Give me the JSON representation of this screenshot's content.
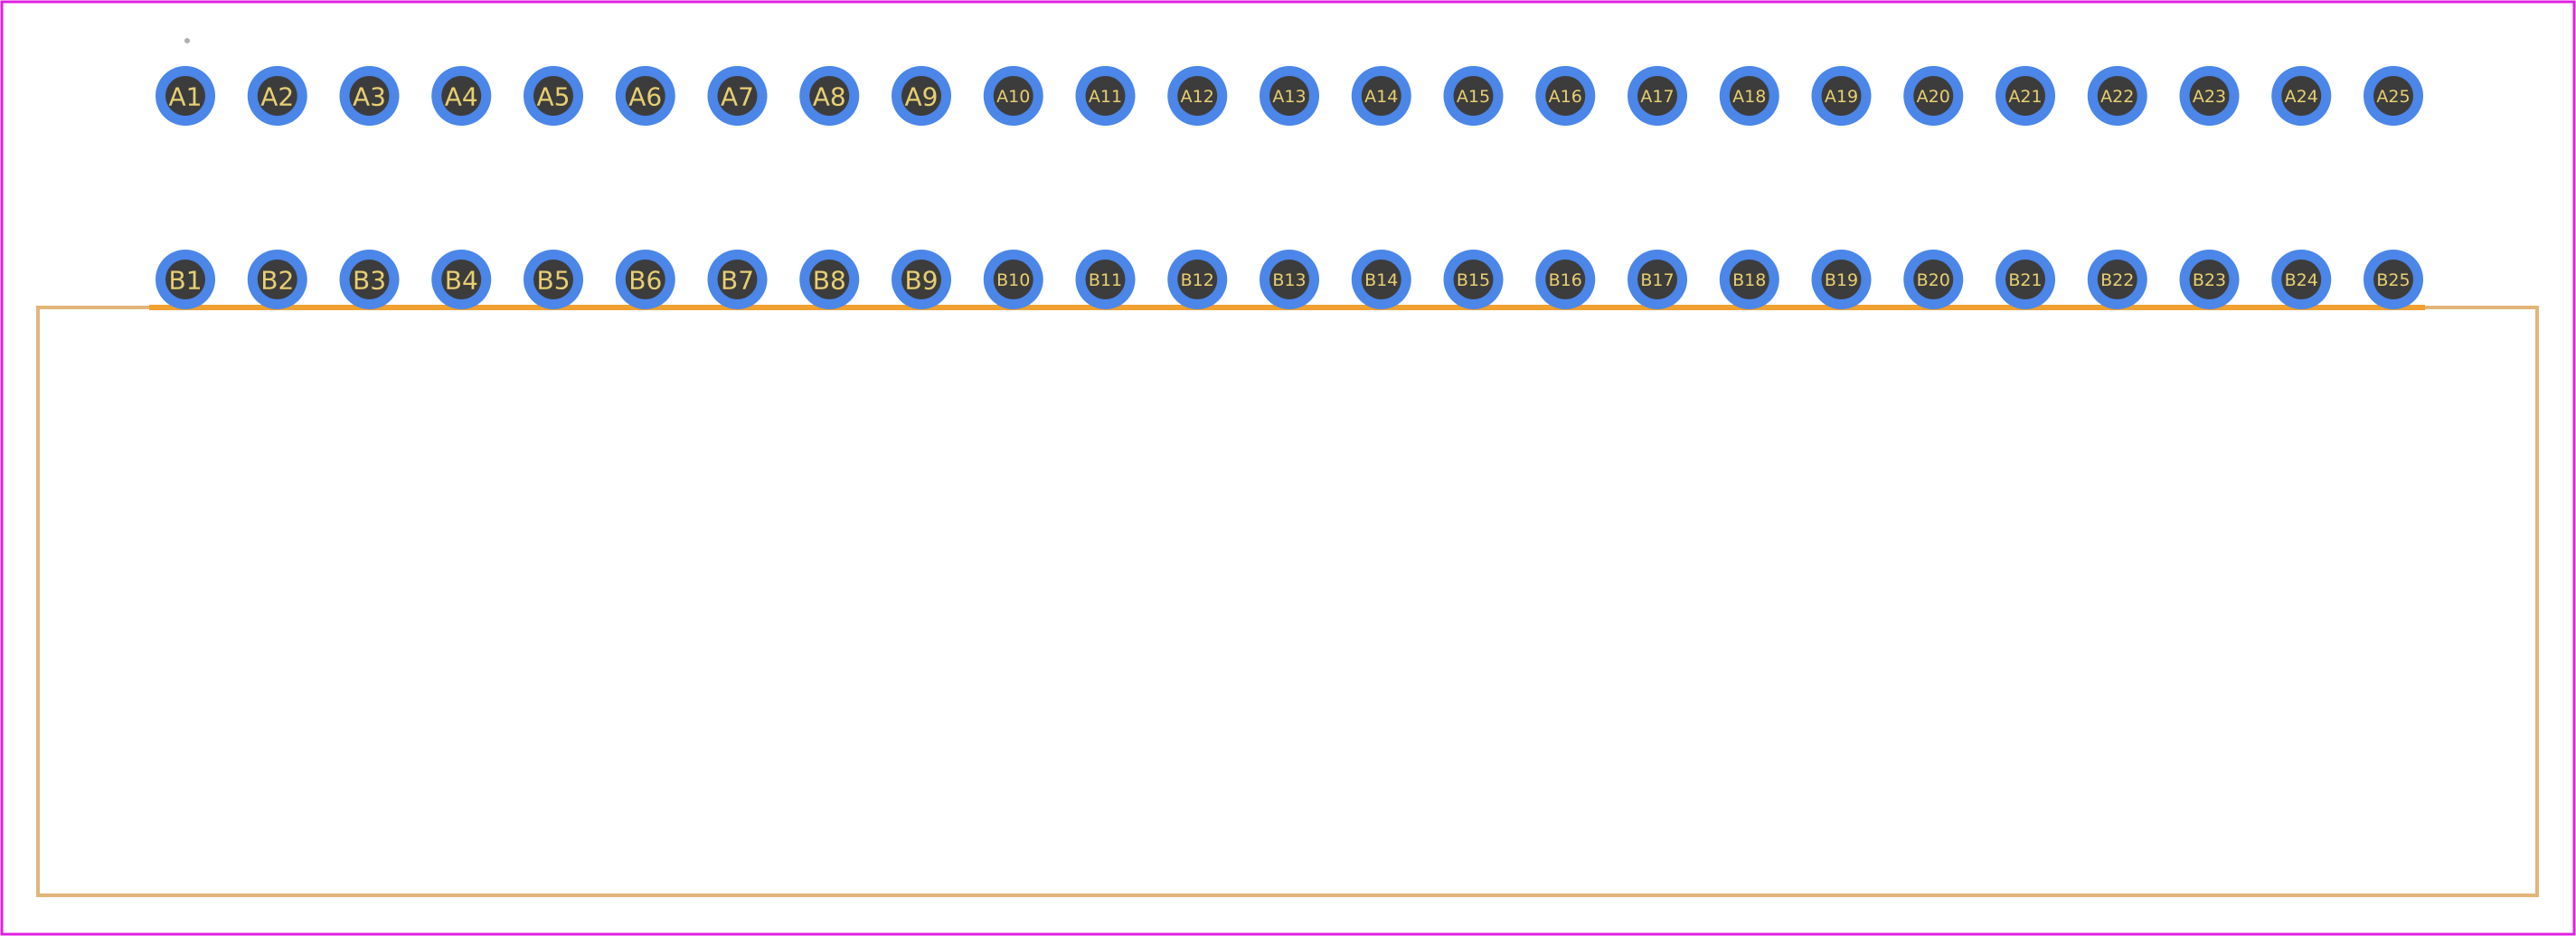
{
  "footprint": {
    "row_a": {
      "pads": [
        "A1",
        "A2",
        "A3",
        "A4",
        "A5",
        "A6",
        "A7",
        "A8",
        "A9",
        "A10",
        "A11",
        "A12",
        "A13",
        "A14",
        "A15",
        "A16",
        "A17",
        "A18",
        "A19",
        "A20",
        "A21",
        "A22",
        "A23",
        "A24",
        "A25"
      ]
    },
    "row_b": {
      "pads": [
        "B1",
        "B2",
        "B3",
        "B4",
        "B5",
        "B6",
        "B7",
        "B8",
        "B9",
        "B10",
        "B11",
        "B12",
        "B13",
        "B14",
        "B15",
        "B16",
        "B17",
        "B18",
        "B19",
        "B20",
        "B21",
        "B22",
        "B23",
        "B24",
        "B25"
      ]
    }
  },
  "colors": {
    "background": "#ffffff",
    "boundary": "#e020e0",
    "pad_ring": "#4b86e8",
    "pad_hole": "#3c3c3c",
    "pad_label": "#e7cf72",
    "silkscreen": "#f0a030",
    "body_outline": "#e2b57a",
    "origin_marker": "#b0b0b0"
  }
}
